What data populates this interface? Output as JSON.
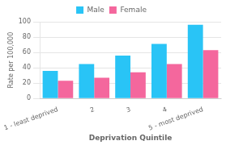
{
  "chart_data": {
    "type": "bar",
    "categories": [
      "1 - least deprived",
      "2",
      "3",
      "4",
      "5 - most deprived"
    ],
    "series": [
      {
        "name": "Male",
        "color": "#29C4F6",
        "values": [
          36,
          45,
          56,
          71,
          96
        ]
      },
      {
        "name": "Female",
        "color": "#F4679D",
        "values": [
          23,
          27,
          34,
          45,
          63
        ]
      }
    ],
    "xlabel": "Deprivation Quintile",
    "ylabel": "Rate per 100,000",
    "ylim": [
      0,
      100
    ],
    "yticks": [
      0,
      20,
      40,
      60,
      80,
      100
    ],
    "grid": true,
    "legend": "top"
  }
}
